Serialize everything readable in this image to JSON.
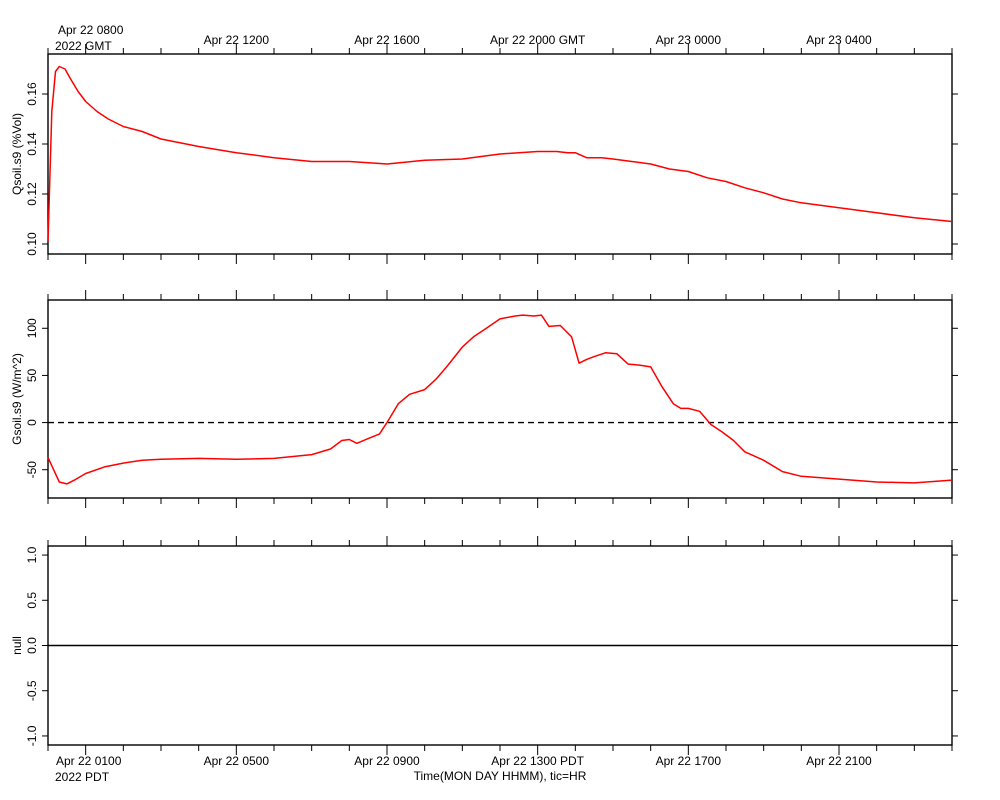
{
  "colors": {
    "series": "#ff0000",
    "axis": "#000000",
    "zero_line": "#000000"
  },
  "top_time_axis": {
    "first_label_line1": "Apr 22 0800",
    "first_label_line2": "2022 GMT",
    "labels": [
      "Apr 22 1200",
      "Apr 22 1600",
      "Apr 22 2000 GMT",
      "Apr 23 0000",
      "Apr 23 0400"
    ]
  },
  "bottom_time_axis": {
    "first_label_line1": "Apr 22 0100",
    "first_label_line2": "2022 PDT",
    "labels": [
      "Apr 22 0500",
      "Apr 22 0900",
      "Apr 22 1300 PDT",
      "Apr 22 1700",
      "Apr 22 2100"
    ],
    "xlabel": "Time(MON DAY HHMM), tic=HR"
  },
  "chart_data": [
    {
      "type": "line",
      "ylabel": "Qsoil.s9 (%Vol)",
      "xlim": [
        0,
        24
      ],
      "ylim": [
        0.096,
        0.176
      ],
      "yticks": [
        0.1,
        0.12,
        0.14,
        0.16
      ],
      "ytick_labels": [
        "0.10",
        "0.12",
        "0.14",
        "0.16"
      ],
      "x_unit": "hours since Apr 22 0000 PDT",
      "series": [
        {
          "x": [
            0,
            0.1,
            0.2,
            0.3,
            0.45,
            0.6,
            0.8,
            1.0,
            1.3,
            1.6,
            2.0,
            2.5,
            3,
            4,
            5,
            6,
            7,
            8,
            9,
            10,
            11,
            12,
            12.5,
            13,
            13.5,
            13.8,
            14,
            14.3,
            14.7,
            15,
            15.5,
            16,
            16.5,
            17,
            17.5,
            18,
            18.5,
            19,
            19.5,
            20,
            21,
            22,
            23,
            24
          ],
          "values": [
            0.101,
            0.153,
            0.169,
            0.171,
            0.17,
            0.166,
            0.161,
            0.157,
            0.153,
            0.15,
            0.147,
            0.145,
            0.142,
            0.139,
            0.1365,
            0.1345,
            0.133,
            0.133,
            0.132,
            0.1335,
            0.134,
            0.136,
            0.1365,
            0.137,
            0.137,
            0.1365,
            0.1365,
            0.1345,
            0.1345,
            0.134,
            0.133,
            0.132,
            0.13,
            0.129,
            0.1265,
            0.125,
            0.1225,
            0.1205,
            0.118,
            0.1165,
            0.1145,
            0.1125,
            0.1105,
            0.109
          ]
        }
      ]
    },
    {
      "type": "line",
      "ylabel": "Gsoil.s9 (W/m^2)",
      "xlim": [
        0,
        24
      ],
      "ylim": [
        -80,
        130
      ],
      "yticks": [
        -50,
        0,
        50,
        100
      ],
      "ytick_labels": [
        "-50",
        "0",
        "50",
        "100"
      ],
      "zero_line": {
        "y": 0,
        "style": "dashed"
      },
      "x_unit": "hours since Apr 22 0000 PDT",
      "series": [
        {
          "x": [
            0,
            0.15,
            0.3,
            0.5,
            0.7,
            1,
            1.5,
            2,
            2.5,
            3,
            4,
            5,
            6,
            7,
            7.5,
            7.8,
            8.0,
            8.2,
            8.5,
            8.8,
            9.0,
            9.3,
            9.6,
            10,
            10.3,
            10.6,
            11,
            11.3,
            11.6,
            12,
            12.4,
            12.6,
            12.9,
            13.1,
            13.3,
            13.6,
            13.9,
            14.1,
            14.3,
            14.5,
            14.8,
            15.1,
            15.4,
            15.7,
            16.0,
            16.3,
            16.6,
            16.8,
            17.0,
            17.3,
            17.6,
            17.9,
            18.2,
            18.5,
            19,
            19.5,
            20,
            21,
            22,
            23,
            24
          ],
          "values": [
            -37,
            -50,
            -63,
            -65,
            -61,
            -54,
            -47,
            -43,
            -40,
            -39,
            -38,
            -39,
            -38,
            -34,
            -28,
            -19,
            -18,
            -22,
            -17,
            -12,
            0,
            20,
            30,
            35,
            46,
            60,
            80,
            91,
            99,
            110,
            113,
            114,
            113,
            114,
            102,
            103,
            91,
            63,
            67,
            70,
            74,
            73,
            62,
            61,
            59,
            38,
            20,
            15,
            15,
            12,
            -2,
            -10,
            -19,
            -31,
            -40,
            -52,
            -57,
            -60,
            -63,
            -64,
            -61
          ]
        }
      ]
    },
    {
      "type": "line",
      "ylabel": "null",
      "xlim": [
        0,
        24
      ],
      "ylim": [
        -1.1,
        1.1
      ],
      "yticks": [
        -1.0,
        -0.5,
        0.0,
        0.5,
        1.0
      ],
      "ytick_labels": [
        "-1.0",
        "-0.5",
        "0.0",
        "0.5",
        "1.0"
      ],
      "zero_line": {
        "y": 0,
        "style": "solid"
      },
      "series": []
    }
  ]
}
